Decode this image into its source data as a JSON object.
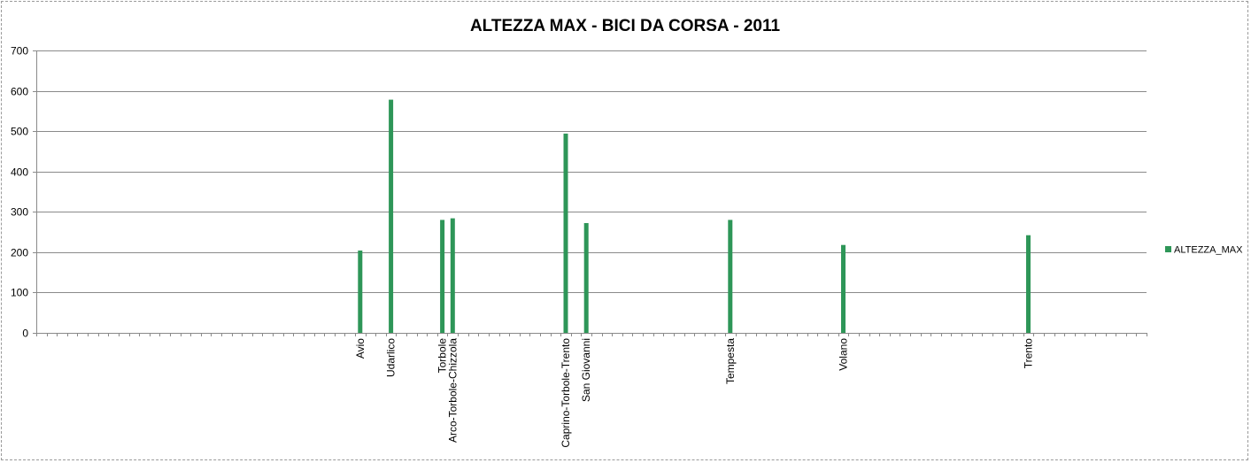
{
  "chart_data": {
    "type": "bar",
    "title": "ALTEZZA MAX - BICI DA CORSA - 2011",
    "xlabel": "",
    "ylabel": "",
    "ylim": [
      0,
      700
    ],
    "yticks": [
      0,
      100,
      200,
      300,
      400,
      500,
      600,
      700
    ],
    "grid": true,
    "legend": "right",
    "slot_count": 108,
    "bar_color": "#2e9658",
    "series": [
      {
        "name": "ALTEZZA_MAX",
        "points": [
          {
            "slot": 31,
            "category": "Avio",
            "value": 204
          },
          {
            "slot": 34,
            "category": "Udarlico",
            "value": 578
          },
          {
            "slot": 39,
            "category": "Torbole",
            "value": 280
          },
          {
            "slot": 40,
            "category": "Arco-Torbole-Chizzola",
            "value": 284
          },
          {
            "slot": 51,
            "category": "Caprino-Torbole-Trento",
            "value": 494
          },
          {
            "slot": 53,
            "category": "San Giovanni",
            "value": 272
          },
          {
            "slot": 67,
            "category": "Tempesta",
            "value": 280
          },
          {
            "slot": 78,
            "category": "Volano",
            "value": 218
          },
          {
            "slot": 96,
            "category": "Trento",
            "value": 242
          }
        ]
      }
    ]
  }
}
